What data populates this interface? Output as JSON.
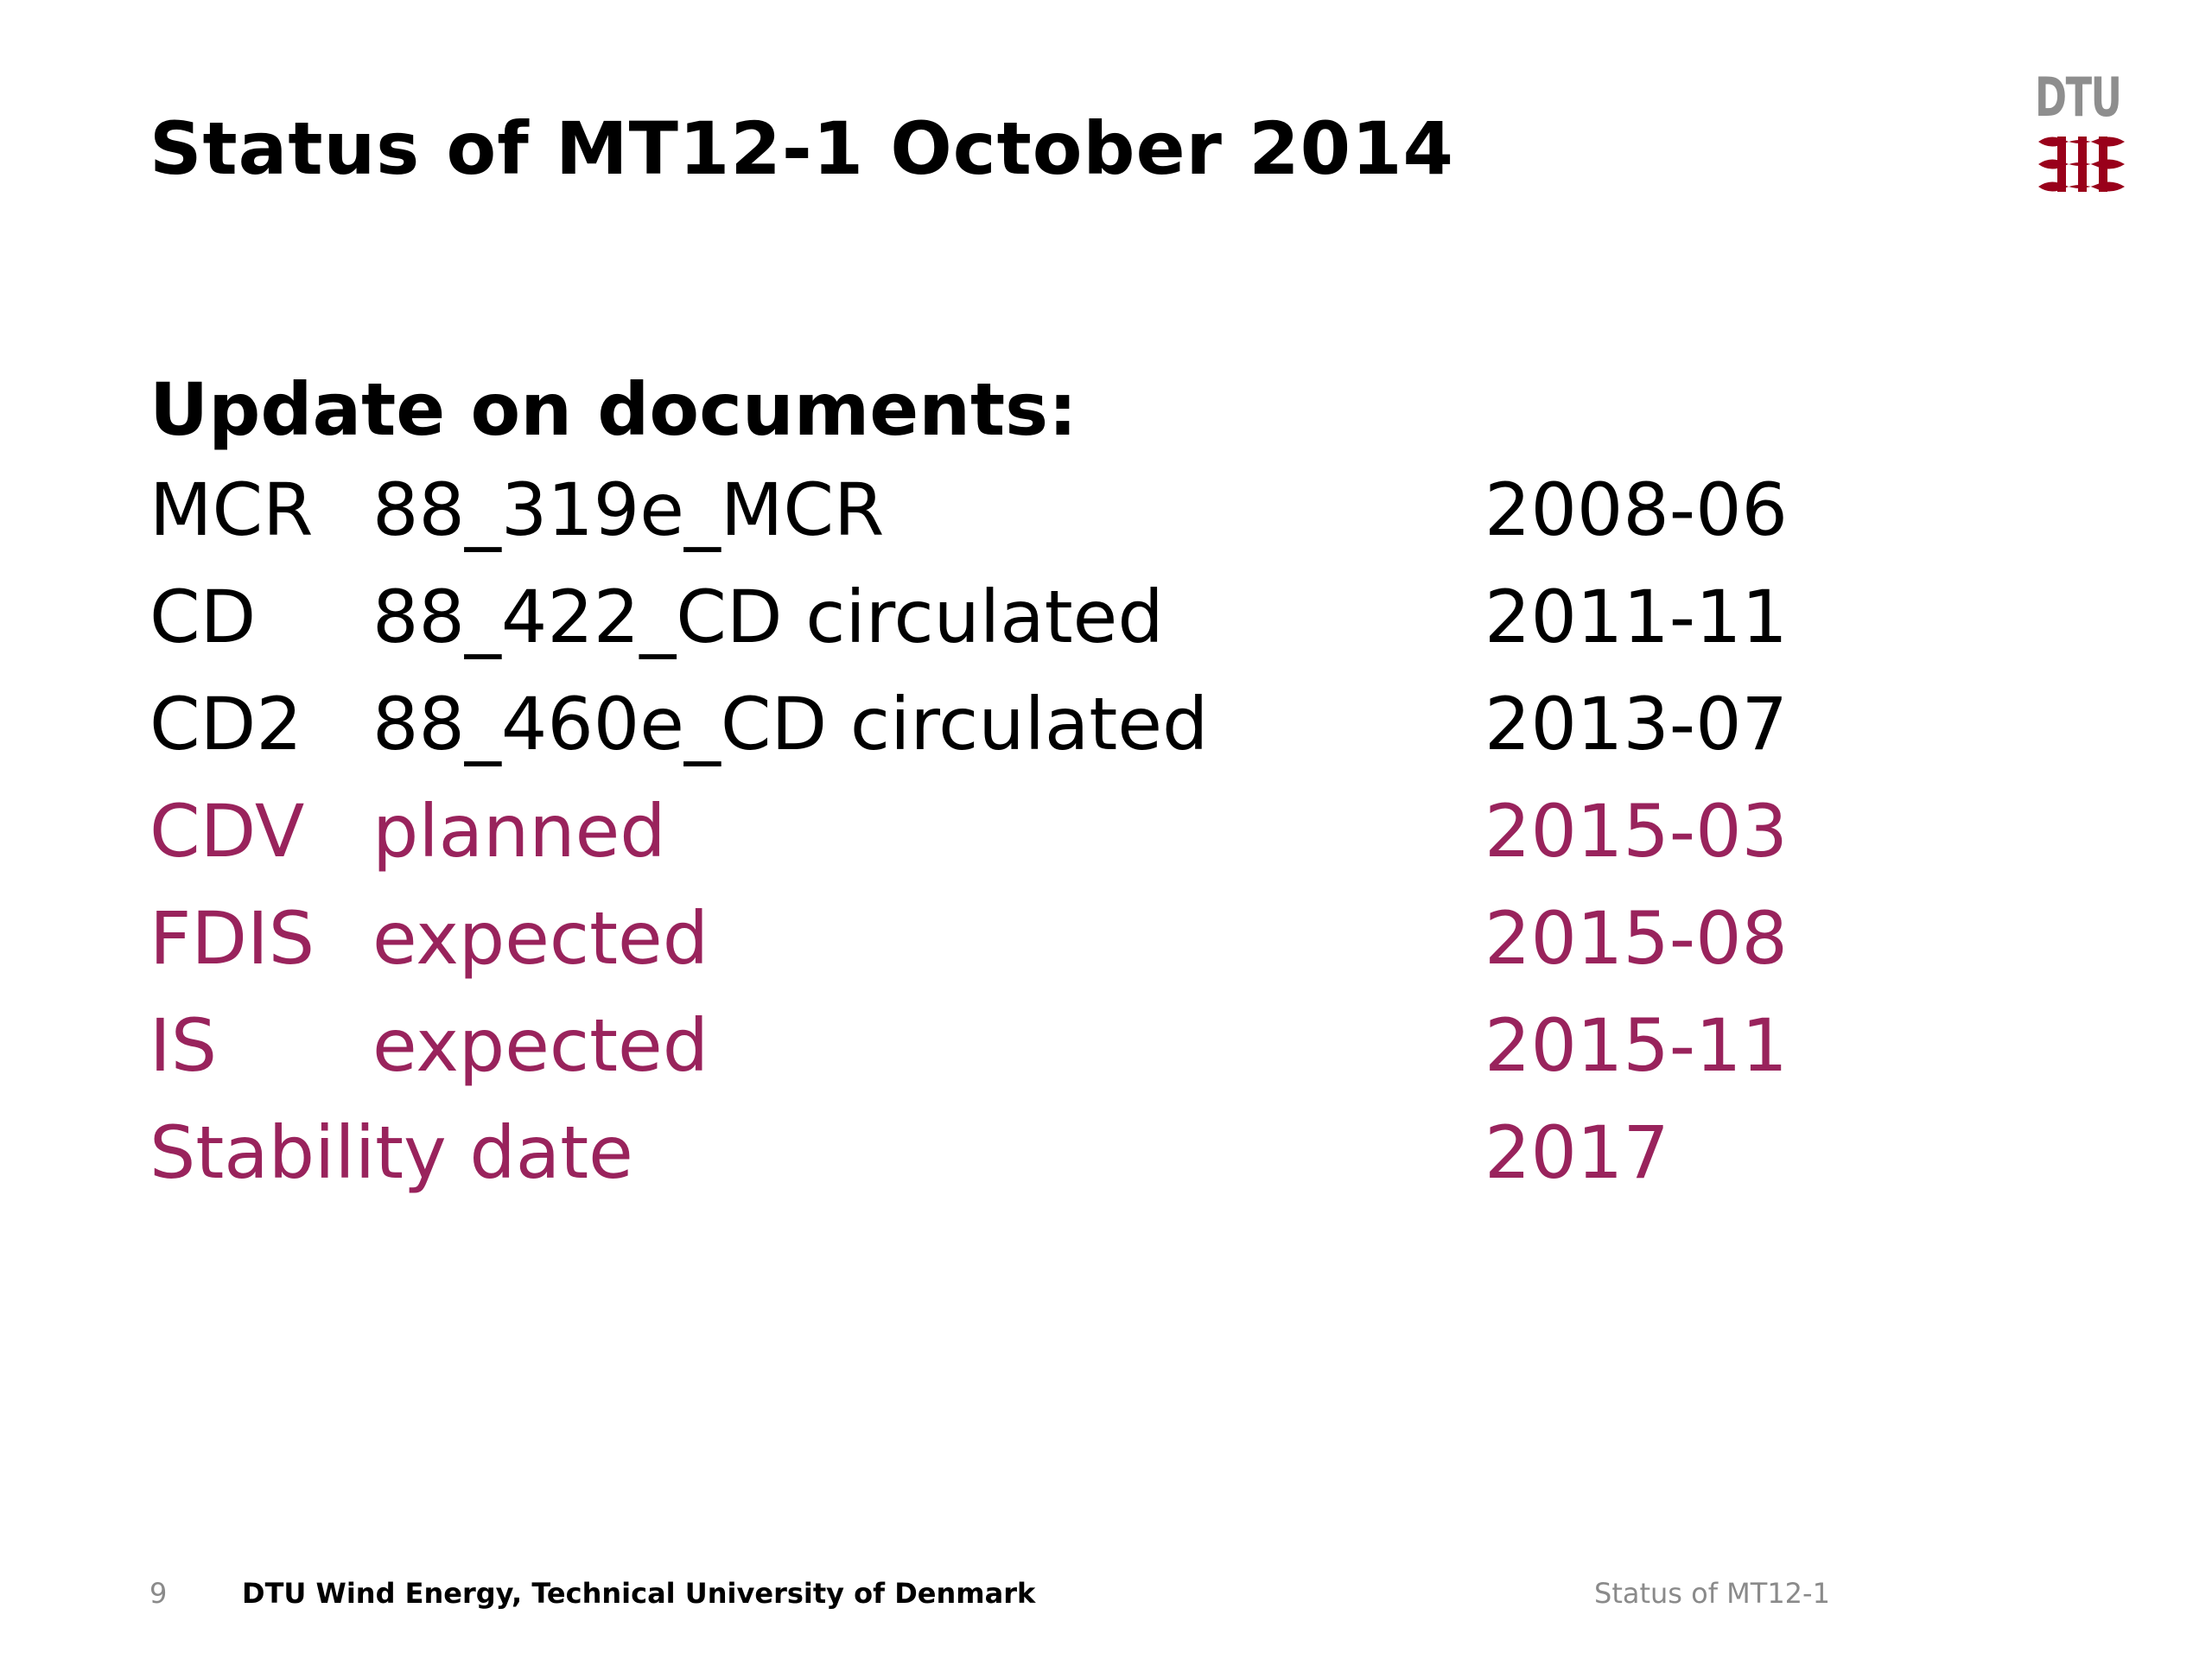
{
  "slide": {
    "title": "Status of MT12-1 October 2014",
    "logo_text": "DTU",
    "heading": "Update on documents:",
    "documents": [
      {
        "code": "MCR",
        "description": "88_319e_MCR",
        "date": "2008-06",
        "status": "past"
      },
      {
        "code": "CD",
        "description": "88_422_CD circulated",
        "date": "2011-11",
        "status": "past"
      },
      {
        "code": "CD2",
        "description": "88_460e_CD circulated",
        "date": "2013-07",
        "status": "past"
      },
      {
        "code": "CDV",
        "description": "planned",
        "date": "2015-03",
        "status": "future"
      },
      {
        "code": "FDIS",
        "description": "expected",
        "date": "2015-08",
        "status": "future"
      },
      {
        "code": "IS",
        "description": "expected",
        "date": "2015-11",
        "status": "future"
      },
      {
        "code": "Stability date",
        "description": "",
        "date": "2017",
        "status": "future"
      }
    ],
    "footer": {
      "page_number": "9",
      "organization": "DTU Wind Energy, Technical University of Denmark",
      "short_title": "Status of MT12-1"
    }
  },
  "colors": {
    "text": "#000000",
    "future_items": "#99235c",
    "logo_gray": "#8e8e8e",
    "logo_red": "#99001a",
    "footer_gray": "#8a8a8a"
  },
  "icons": {
    "logo": "dtu-logo-icon"
  }
}
